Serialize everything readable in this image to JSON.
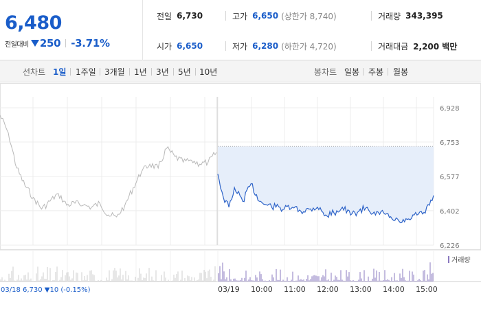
{
  "header": {
    "price": "6,480",
    "change_label": "전일대비",
    "change_value": "250",
    "change_pct": "-3.71%",
    "prev_close": {
      "label": "전일",
      "value": "6,730"
    },
    "open": {
      "label": "시가",
      "value": "6,650"
    },
    "high": {
      "label": "고가",
      "value": "6,650",
      "sub": "(상한가 8,740)"
    },
    "low": {
      "label": "저가",
      "value": "6,280",
      "sub": "(하한가 4,720)"
    },
    "volume": {
      "label": "거래량",
      "value": "343,395"
    },
    "trade_amount": {
      "label": "거래대금",
      "value": "2,200 백만"
    }
  },
  "tabs": {
    "line_label": "선차트",
    "line_tabs": [
      "1일",
      "1주일",
      "3개월",
      "1년",
      "3년",
      "5년",
      "10년"
    ],
    "active_line_tab": "1일",
    "candle_label": "봉차트",
    "candle_tabs": [
      "일봉",
      "주봉",
      "월봉"
    ]
  },
  "colors": {
    "accent_blue": "#1a5dc9",
    "prev_day_line": "#b8b8b8",
    "today_line": "#2d63c8",
    "area_fill": "#e6eefa",
    "volume_bar": "#8a78bf"
  },
  "chart_data": {
    "type": "line",
    "title": "",
    "y_ticks": [
      "6,928",
      "6,753",
      "6,577",
      "6,402",
      "6,226"
    ],
    "ylim": [
      6226,
      6928
    ],
    "prev_close": 6730,
    "x_labels": [
      "03/19",
      "10:00",
      "11:00",
      "12:00",
      "13:00",
      "14:00",
      "15:00"
    ],
    "volume_legend": "거래량",
    "footer": "03/18  6,730 ▼10 (-0.15%)",
    "series": [
      {
        "name": "03/18",
        "x": [
          "09:00",
          "09:15",
          "09:30",
          "09:45",
          "10:00",
          "10:15",
          "10:30",
          "10:45",
          "11:00",
          "11:15",
          "11:30",
          "11:45",
          "12:00",
          "12:15",
          "12:30",
          "12:45",
          "13:00",
          "13:15",
          "13:30",
          "13:45",
          "14:00",
          "14:15",
          "14:30",
          "14:45",
          "15:00",
          "15:15",
          "15:30"
        ],
        "values": [
          6890,
          6800,
          6620,
          6530,
          6470,
          6410,
          6450,
          6490,
          6430,
          6440,
          6430,
          6420,
          6440,
          6380,
          6370,
          6430,
          6520,
          6600,
          6640,
          6620,
          6720,
          6680,
          6650,
          6660,
          6640,
          6650,
          6700
        ]
      },
      {
        "name": "03/19",
        "x": [
          "09:00",
          "09:10",
          "09:20",
          "09:30",
          "09:45",
          "10:00",
          "10:15",
          "10:30",
          "10:45",
          "11:00",
          "11:15",
          "11:30",
          "11:45",
          "12:00",
          "12:15",
          "12:30",
          "12:45",
          "13:00",
          "13:15",
          "13:30",
          "13:45",
          "14:00",
          "14:15",
          "14:30",
          "14:45",
          "15:00",
          "15:15",
          "15:30"
        ],
        "values": [
          6590,
          6470,
          6420,
          6520,
          6450,
          6540,
          6450,
          6430,
          6420,
          6410,
          6420,
          6400,
          6410,
          6420,
          6380,
          6390,
          6420,
          6380,
          6400,
          6420,
          6380,
          6390,
          6360,
          6340,
          6360,
          6380,
          6390,
          6480
        ]
      }
    ]
  }
}
